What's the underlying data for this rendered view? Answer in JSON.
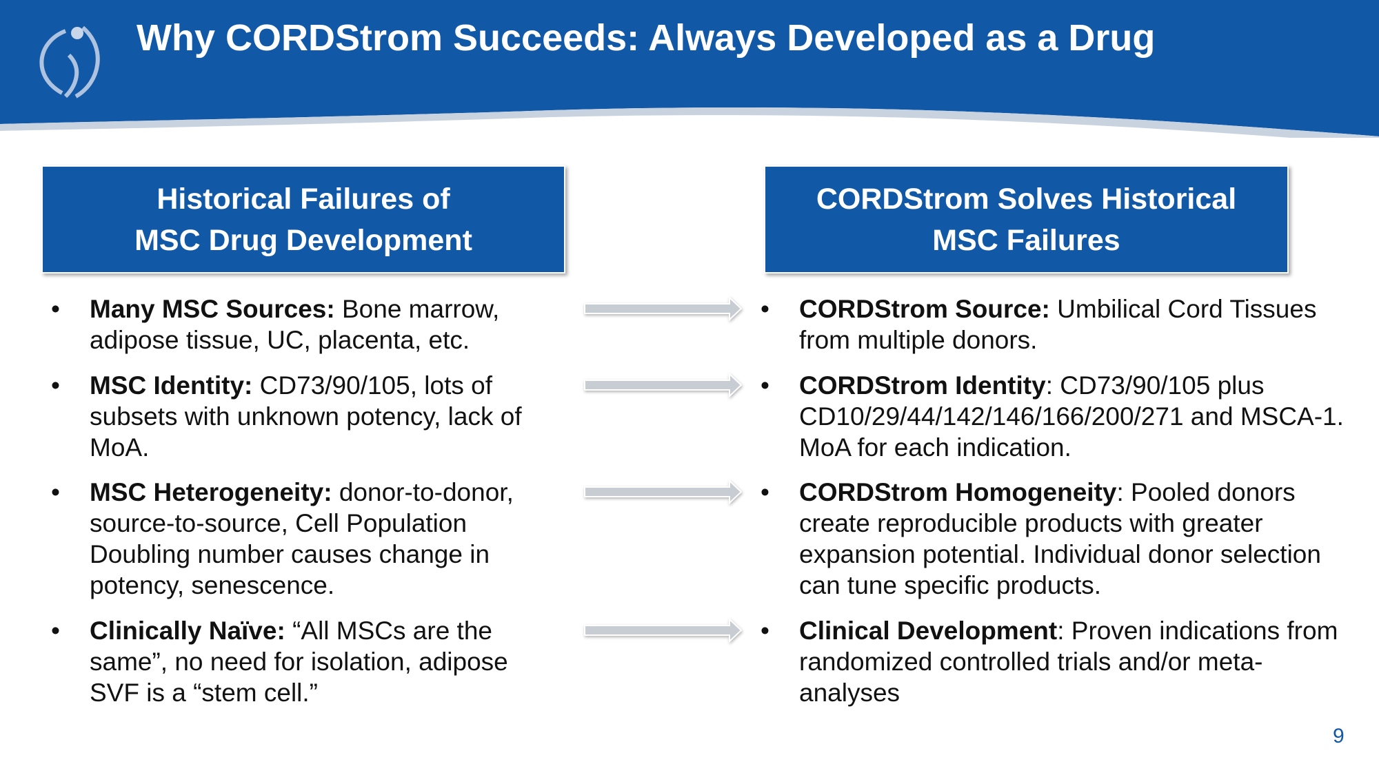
{
  "header": {
    "title": "Why CORDStrom Succeeds: Always Developed as a Drug"
  },
  "left": {
    "heading": [
      "Historical Failures of",
      "MSC Drug Development"
    ],
    "items": [
      {
        "lead": "Many MSC Sources:",
        "text": " Bone marrow, adipose tissue, UC, placenta, etc."
      },
      {
        "lead": "MSC Identity:",
        "text": " CD73/90/105, lots of subsets with unknown potency, lack of MoA."
      },
      {
        "lead": "MSC Heterogeneity:",
        "text": " donor-to-donor, source-to-source, Cell Population Doubling number causes change in potency, senescence."
      },
      {
        "lead": "Clinically Naïve:",
        "text": " “All MSCs are the same”, no need for isolation, adipose SVF is a “stem cell.”"
      }
    ]
  },
  "right": {
    "heading": [
      "CORDStrom Solves Historical",
      "MSC Failures"
    ],
    "items": [
      {
        "lead": "CORDStrom Source:",
        "text": " Umbilical Cord Tissues from multiple donors."
      },
      {
        "lead": "CORDStrom Identity",
        "text": ": CD73/90/105 plus CD10/29/44/142/146/166/200/271 and MSCA-1. MoA for each indication."
      },
      {
        "lead": "CORDStrom Homogeneity",
        "text": ": Pooled donors create reproducible products with greater expansion potential. Individual donor selection can tune specific products."
      },
      {
        "lead": "Clinical Development",
        "text": ": Proven indications from randomized controlled trials and/or meta-analyses"
      }
    ]
  },
  "page_number": "9"
}
